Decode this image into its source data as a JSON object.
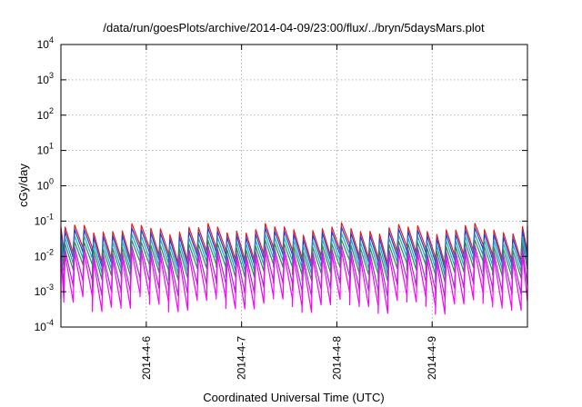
{
  "chart_data": {
    "type": "line",
    "title": "/data/run/goesPlots/archive/2014-04-09/23:00/flux/../bryn/5daysMars.plot",
    "xlabel": "Coordinated Universal Time (UTC)",
    "ylabel": "cGy/day",
    "y_scale": "log",
    "ylim": [
      0.0001,
      10000
    ],
    "xlim": [
      "2014-04-05 02:30",
      "2014-04-10 00:00"
    ],
    "grid": true,
    "legend": "none",
    "y_ticks": [
      {
        "base": "10",
        "exp": "-4",
        "value": 0.0001
      },
      {
        "base": "10",
        "exp": "-3",
        "value": 0.001
      },
      {
        "base": "10",
        "exp": "-2",
        "value": 0.01
      },
      {
        "base": "10",
        "exp": "-1",
        "value": 0.1
      },
      {
        "base": "10",
        "exp": "0",
        "value": 1
      },
      {
        "base": "10",
        "exp": "1",
        "value": 10
      },
      {
        "base": "10",
        "exp": "2",
        "value": 100
      },
      {
        "base": "10",
        "exp": "3",
        "value": 1000
      },
      {
        "base": "10",
        "exp": "4",
        "value": 10000
      }
    ],
    "x_ticks": [
      {
        "label": "2014-4-6",
        "value": "2014-04-06 00:00"
      },
      {
        "label": "2014-4-7",
        "value": "2014-04-07 00:00"
      },
      {
        "label": "2014-4-8",
        "value": "2014-04-08 00:00"
      },
      {
        "label": "2014-4-9",
        "value": "2014-04-09 00:00"
      }
    ],
    "series_style": "sawtooth, about 10 cycles per day",
    "series": [
      {
        "color": "#e41a1c",
        "peak": 0.06,
        "trough": 0.012
      },
      {
        "color": "#1f3fd9",
        "peak": 0.045,
        "trough": 0.009
      },
      {
        "color": "#17a6c9",
        "peak": 0.03,
        "trough": 0.006
      },
      {
        "color": "#2e8b57",
        "peak": 0.02,
        "trough": 0.004
      },
      {
        "color": "#9932cc",
        "peak": 0.014,
        "trough": 0.0014
      },
      {
        "color": "#ff00ff",
        "peak": 0.01,
        "trough": 0.0005
      }
    ]
  }
}
